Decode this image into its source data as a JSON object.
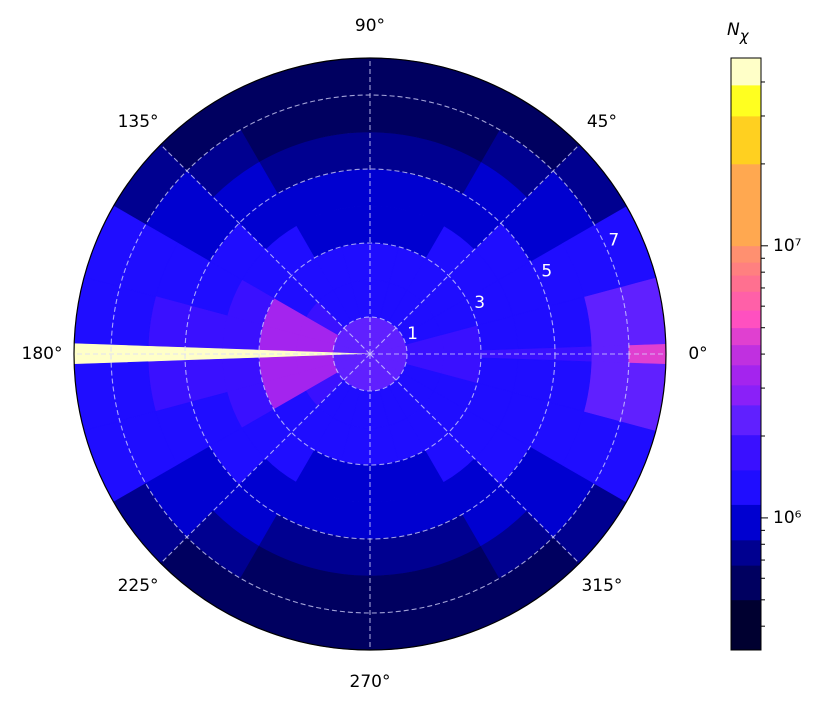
{
  "chart_data": {
    "type": "polar_contour",
    "r_edges": [
      0,
      1,
      2,
      3,
      4,
      5,
      6,
      7,
      8
    ],
    "theta_edges": [
      -2,
      2,
      15,
      30,
      45,
      60,
      75,
      90,
      105,
      120,
      135,
      150,
      165,
      178,
      182,
      195,
      210,
      225,
      240,
      255,
      270,
      285,
      300,
      315,
      330,
      345,
      358
    ],
    "z": [
      [
        2400000,
        2400000,
        2400000,
        2400000,
        2400000,
        2400000,
        2400000,
        2400000,
        2400000,
        2400000,
        2400000,
        2400000,
        2400000,
        45000000,
        2400000,
        2400000,
        2400000,
        2400000,
        2400000,
        2400000,
        2400000,
        2400000,
        2400000,
        2400000,
        2400000,
        2400000
      ],
      [
        1600000,
        1600000,
        1400000,
        1400000,
        1400000,
        1400000,
        1400000,
        1400000,
        1400000,
        1400000,
        1600000,
        3300000,
        3300000,
        45000000,
        3300000,
        3300000,
        1600000,
        1400000,
        1400000,
        1400000,
        1400000,
        1400000,
        1400000,
        1400000,
        1400000,
        1600000
      ],
      [
        1600000,
        1600000,
        1400000,
        1300000,
        1300000,
        1300000,
        1300000,
        1300000,
        1300000,
        1300000,
        1300000,
        3300000,
        3300000,
        45000000,
        3300000,
        3300000,
        1300000,
        1300000,
        1300000,
        1300000,
        1300000,
        1300000,
        1300000,
        1300000,
        1400000,
        1600000
      ],
      [
        1600000,
        1400000,
        1400000,
        1300000,
        1300000,
        1000000,
        1000000,
        1000000,
        1000000,
        1300000,
        1300000,
        1600000,
        1600000,
        45000000,
        1600000,
        1600000,
        1300000,
        1300000,
        1000000,
        1000000,
        1000000,
        1000000,
        1300000,
        1300000,
        1400000,
        1400000
      ],
      [
        1600000,
        1400000,
        1300000,
        1300000,
        1000000,
        1000000,
        1000000,
        1000000,
        1000000,
        1000000,
        1300000,
        1300000,
        1600000,
        45000000,
        1600000,
        1300000,
        1300000,
        1000000,
        1000000,
        1000000,
        1000000,
        1000000,
        1000000,
        1300000,
        1300000,
        1400000
      ],
      [
        1600000,
        1400000,
        1300000,
        1000000,
        1000000,
        750000,
        750000,
        750000,
        750000,
        1000000,
        1000000,
        1300000,
        1600000,
        45000000,
        1600000,
        1300000,
        1000000,
        1000000,
        750000,
        750000,
        750000,
        750000,
        1000000,
        1000000,
        1300000,
        1400000
      ],
      [
        2400000,
        2400000,
        1300000,
        1000000,
        750000,
        600000,
        600000,
        600000,
        600000,
        750000,
        1000000,
        1300000,
        1400000,
        45000000,
        1400000,
        1300000,
        1000000,
        750000,
        600000,
        600000,
        600000,
        600000,
        750000,
        1000000,
        1300000,
        2400000
      ],
      [
        4600000,
        2400000,
        1300000,
        750000,
        600000,
        600000,
        600000,
        600000,
        600000,
        600000,
        750000,
        1300000,
        1400000,
        45000000,
        1400000,
        1300000,
        750000,
        600000,
        600000,
        600000,
        600000,
        600000,
        600000,
        750000,
        1300000,
        2400000
      ]
    ],
    "rlim": [
      0,
      8
    ],
    "rticks": [
      1,
      3,
      5,
      7
    ],
    "thetaticks": [
      {
        "value": 0,
        "label": "0°"
      },
      {
        "value": 45,
        "label": "45°"
      },
      {
        "value": 90,
        "label": "90°"
      },
      {
        "value": 135,
        "label": "135°"
      },
      {
        "value": 180,
        "label": "180°"
      },
      {
        "value": 225,
        "label": "225°"
      },
      {
        "value": 270,
        "label": "270°"
      },
      {
        "value": 315,
        "label": "315°"
      }
    ],
    "grid": true,
    "grid_color": "#d8d8ff",
    "colorbar": {
      "label": "N",
      "label_subscript": "χ",
      "log": true,
      "levels": [
        327000,
        500000,
        670000,
        830000,
        1120000,
        1500000,
        2020000,
        2600000,
        3080000,
        3650000,
        4330000,
        5000000,
        5800000,
        6800000,
        7800000,
        8700000,
        10000000,
        20000000,
        30000000,
        39000000,
        49000000
      ],
      "colors": [
        "#000030",
        "#000060",
        "#000090",
        "#0000d0",
        "#1f0dff",
        "#3a10ff",
        "#6020ff",
        "#8a20f8",
        "#a424ee",
        "#c030e0",
        "#e040d0",
        "#ff50c0",
        "#ff60a8",
        "#ff7090",
        "#ff8080",
        "#ff9070",
        "#ffa850",
        "#ffd020",
        "#ffff20",
        "#ffffc8"
      ],
      "ticks": [
        {
          "value": 1000000,
          "label": "10⁶"
        },
        {
          "value": 10000000,
          "label": "10⁷"
        }
      ],
      "minor_ticks": [
        400000,
        500000,
        600000,
        700000,
        800000,
        900000,
        2000000,
        3000000,
        4000000,
        5000000,
        6000000,
        7000000,
        8000000,
        9000000,
        20000000,
        30000000,
        40000000
      ]
    }
  }
}
